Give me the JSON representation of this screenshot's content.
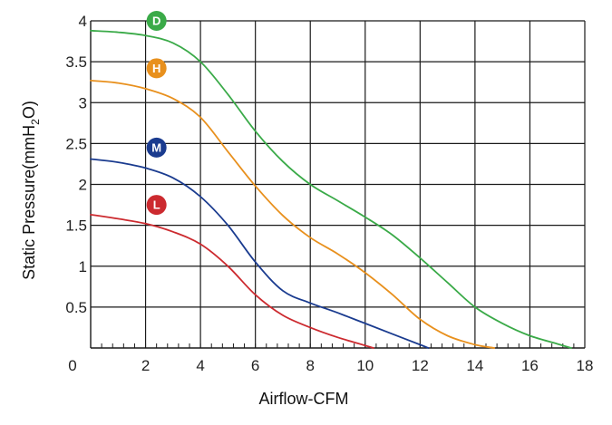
{
  "chart_data": {
    "type": "line",
    "xlabel": "Airflow-CFM",
    "ylabel": "Static Pressure(mmH",
    "ylabel_sub": "2",
    "ylabel_end": "O)",
    "xlim": [
      0,
      18
    ],
    "ylim": [
      0,
      4
    ],
    "x_ticks": [
      "0",
      "2",
      "4",
      "6",
      "8",
      "10",
      "12",
      "14",
      "16",
      "18"
    ],
    "y_ticks": [
      "0",
      "0.5",
      "1",
      "1.5",
      "2",
      "2.5",
      "3",
      "3.5",
      "4"
    ],
    "grid": true,
    "series": [
      {
        "name": "D",
        "color": "#3aaa48",
        "x": [
          0,
          1,
          2,
          3,
          4,
          5,
          6,
          7,
          8,
          9,
          10,
          11,
          12,
          13,
          14,
          15,
          16,
          17,
          17.5
        ],
        "y": [
          3.88,
          3.86,
          3.82,
          3.73,
          3.5,
          3.1,
          2.65,
          2.28,
          2.0,
          1.8,
          1.6,
          1.38,
          1.1,
          0.8,
          0.5,
          0.3,
          0.15,
          0.05,
          0.0
        ]
      },
      {
        "name": "H",
        "color": "#e8901d",
        "x": [
          0,
          1,
          2,
          3,
          4,
          5,
          6,
          7,
          8,
          9,
          10,
          11,
          12,
          13,
          14,
          14.7
        ],
        "y": [
          3.27,
          3.24,
          3.17,
          3.05,
          2.82,
          2.4,
          1.98,
          1.62,
          1.35,
          1.15,
          0.92,
          0.65,
          0.35,
          0.15,
          0.04,
          0.0
        ]
      },
      {
        "name": "M",
        "color": "#1a3b8f",
        "x": [
          0,
          1,
          2,
          3,
          4,
          5,
          6,
          7,
          8,
          9,
          10,
          11,
          12,
          12.3
        ],
        "y": [
          2.31,
          2.27,
          2.2,
          2.08,
          1.85,
          1.5,
          1.05,
          0.7,
          0.55,
          0.43,
          0.3,
          0.17,
          0.04,
          0.0
        ]
      },
      {
        "name": "L",
        "color": "#cc2a2f",
        "x": [
          0,
          1,
          2,
          3,
          4,
          5,
          6,
          7,
          8,
          9,
          10,
          10.3
        ],
        "y": [
          1.63,
          1.58,
          1.52,
          1.42,
          1.27,
          1.0,
          0.65,
          0.4,
          0.25,
          0.13,
          0.03,
          0.0
        ]
      }
    ],
    "badges": [
      {
        "label": "D",
        "color": "#3aaa48",
        "x": 2.4,
        "y": 4.0
      },
      {
        "label": "H",
        "color": "#e8901d",
        "x": 2.4,
        "y": 3.42
      },
      {
        "label": "M",
        "color": "#1a3b8f",
        "x": 2.4,
        "y": 2.45
      },
      {
        "label": "L",
        "color": "#cc2a2f",
        "x": 2.4,
        "y": 1.75
      }
    ]
  }
}
